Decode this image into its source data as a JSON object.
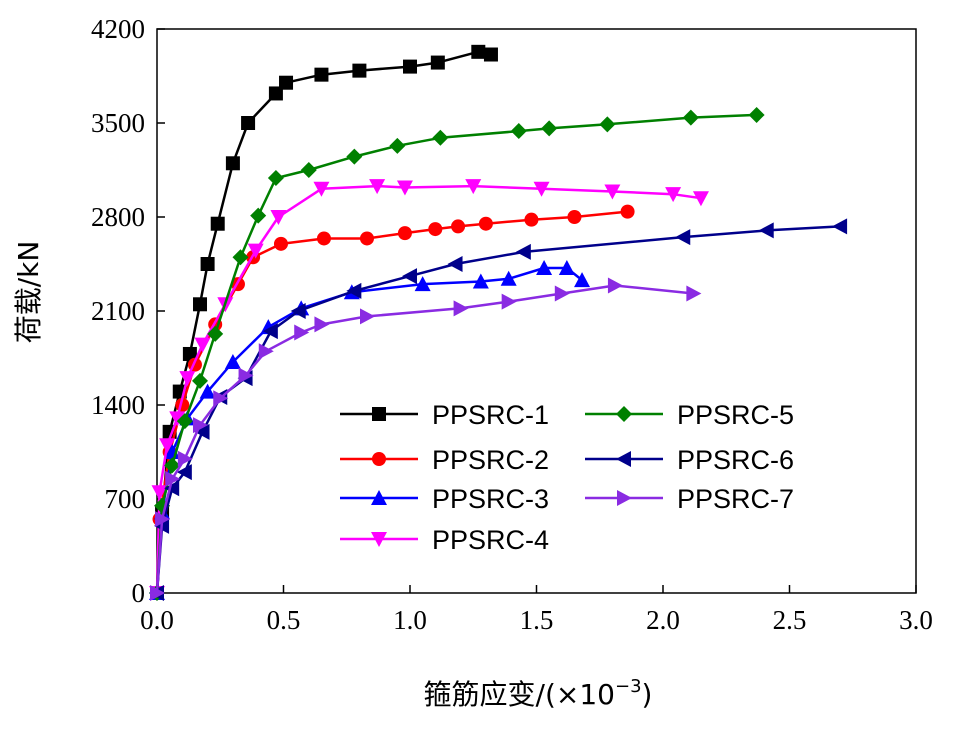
{
  "chart_data": {
    "type": "line",
    "xlabel": "箍筋应变/(×10",
    "xlabel_exp": "−3",
    "xlabel_end": ")",
    "ylabel": "荷载/kN",
    "xlim": [
      0,
      3.0
    ],
    "ylim": [
      0,
      4200
    ],
    "xticks": [
      "0.0",
      "0.5",
      "1.0",
      "1.5",
      "2.0",
      "2.5",
      "3.0"
    ],
    "yticks": [
      "0",
      "700",
      "1400",
      "2100",
      "2800",
      "3500",
      "4200"
    ],
    "grid": false,
    "legend_position": "lower-right",
    "series": [
      {
        "name": "PPSRC-1",
        "color": "#000000",
        "marker": "square",
        "points": [
          [
            0,
            0
          ],
          [
            0.02,
            600
          ],
          [
            0.05,
            1200
          ],
          [
            0.09,
            1500
          ],
          [
            0.13,
            1780
          ],
          [
            0.17,
            2150
          ],
          [
            0.2,
            2450
          ],
          [
            0.24,
            2750
          ],
          [
            0.3,
            3200
          ],
          [
            0.36,
            3500
          ],
          [
            0.47,
            3720
          ],
          [
            0.51,
            3800
          ],
          [
            0.65,
            3860
          ],
          [
            0.8,
            3890
          ],
          [
            1.0,
            3920
          ],
          [
            1.11,
            3950
          ],
          [
            1.27,
            4030
          ],
          [
            1.32,
            4010
          ]
        ]
      },
      {
        "name": "PPSRC-2",
        "color": "#ff0000",
        "marker": "circle",
        "points": [
          [
            0,
            0
          ],
          [
            0.01,
            550
          ],
          [
            0.05,
            1050
          ],
          [
            0.1,
            1400
          ],
          [
            0.15,
            1700
          ],
          [
            0.23,
            2000
          ],
          [
            0.32,
            2300
          ],
          [
            0.38,
            2500
          ],
          [
            0.49,
            2600
          ],
          [
            0.66,
            2640
          ],
          [
            0.83,
            2640
          ],
          [
            0.98,
            2680
          ],
          [
            1.1,
            2710
          ],
          [
            1.19,
            2730
          ],
          [
            1.3,
            2750
          ],
          [
            1.48,
            2780
          ],
          [
            1.65,
            2800
          ],
          [
            1.86,
            2840
          ]
        ]
      },
      {
        "name": "PPSRC-3",
        "color": "#0000ff",
        "marker": "triangle-up",
        "points": [
          [
            0,
            0
          ],
          [
            0.02,
            600
          ],
          [
            0.06,
            1050
          ],
          [
            0.12,
            1300
          ],
          [
            0.2,
            1500
          ],
          [
            0.3,
            1720
          ],
          [
            0.44,
            1980
          ],
          [
            0.57,
            2120
          ],
          [
            0.77,
            2240
          ],
          [
            1.05,
            2300
          ],
          [
            1.28,
            2320
          ],
          [
            1.39,
            2340
          ],
          [
            1.53,
            2420
          ],
          [
            1.62,
            2420
          ],
          [
            1.68,
            2330
          ]
        ]
      },
      {
        "name": "PPSRC-4",
        "color": "#ff00ff",
        "marker": "triangle-down",
        "points": [
          [
            0,
            0
          ],
          [
            0.01,
            750
          ],
          [
            0.04,
            1100
          ],
          [
            0.08,
            1300
          ],
          [
            0.12,
            1600
          ],
          [
            0.18,
            1850
          ],
          [
            0.27,
            2150
          ],
          [
            0.39,
            2550
          ],
          [
            0.48,
            2800
          ],
          [
            0.65,
            3010
          ],
          [
            0.87,
            3030
          ],
          [
            0.98,
            3020
          ],
          [
            1.25,
            3030
          ],
          [
            1.52,
            3010
          ],
          [
            1.8,
            2990
          ],
          [
            2.04,
            2970
          ],
          [
            2.15,
            2940
          ]
        ]
      },
      {
        "name": "PPSRC-5",
        "color": "#008000",
        "marker": "diamond",
        "points": [
          [
            0,
            0
          ],
          [
            0.02,
            650
          ],
          [
            0.06,
            950
          ],
          [
            0.11,
            1280
          ],
          [
            0.17,
            1580
          ],
          [
            0.23,
            1930
          ],
          [
            0.33,
            2500
          ],
          [
            0.4,
            2810
          ],
          [
            0.47,
            3090
          ],
          [
            0.6,
            3150
          ],
          [
            0.78,
            3250
          ],
          [
            0.95,
            3330
          ],
          [
            1.12,
            3390
          ],
          [
            1.43,
            3440
          ],
          [
            1.55,
            3460
          ],
          [
            1.78,
            3490
          ],
          [
            2.11,
            3540
          ],
          [
            2.37,
            3560
          ]
        ]
      },
      {
        "name": "PPSRC-6",
        "color": "#00008b",
        "marker": "triangle-left",
        "points": [
          [
            0,
            0
          ],
          [
            0.02,
            500
          ],
          [
            0.06,
            780
          ],
          [
            0.11,
            900
          ],
          [
            0.18,
            1200
          ],
          [
            0.25,
            1460
          ],
          [
            0.35,
            1600
          ],
          [
            0.45,
            1950
          ],
          [
            0.56,
            2100
          ],
          [
            0.78,
            2250
          ],
          [
            1.0,
            2360
          ],
          [
            1.18,
            2450
          ],
          [
            1.45,
            2540
          ],
          [
            2.08,
            2650
          ],
          [
            2.41,
            2700
          ],
          [
            2.7,
            2730
          ]
        ]
      },
      {
        "name": "PPSRC-7",
        "color": "#8a2be2",
        "marker": "triangle-right",
        "points": [
          [
            0,
            0
          ],
          [
            0.02,
            550
          ],
          [
            0.06,
            850
          ],
          [
            0.11,
            1000
          ],
          [
            0.17,
            1250
          ],
          [
            0.25,
            1450
          ],
          [
            0.35,
            1620
          ],
          [
            0.43,
            1800
          ],
          [
            0.57,
            1940
          ],
          [
            0.65,
            2000
          ],
          [
            0.83,
            2060
          ],
          [
            1.2,
            2120
          ],
          [
            1.39,
            2170
          ],
          [
            1.6,
            2230
          ],
          [
            1.81,
            2290
          ],
          [
            2.12,
            2230
          ]
        ]
      }
    ]
  }
}
